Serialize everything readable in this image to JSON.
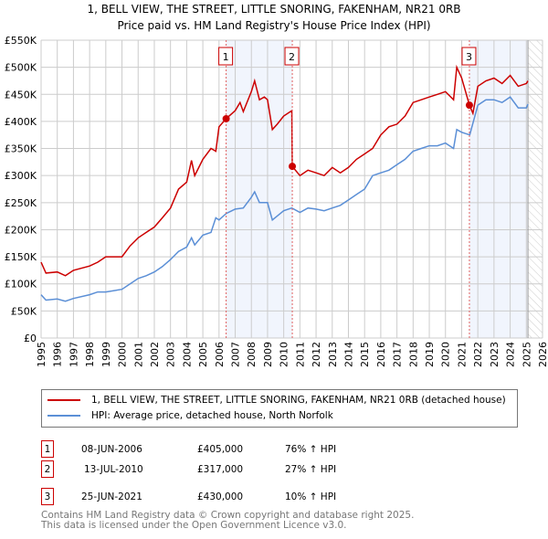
{
  "chart_data": {
    "type": "line",
    "title": "1, BELL VIEW, THE STREET, LITTLE SNORING, FAKENHAM, NR21 0RB",
    "subtitle": "Price paid vs. HM Land Registry's House Price Index (HPI)",
    "xlim": [
      1995,
      2026
    ],
    "ylim": [
      0,
      550000
    ],
    "yticks": [
      {
        "v": 0,
        "label": "£0"
      },
      {
        "v": 50000,
        "label": "£50K"
      },
      {
        "v": 100000,
        "label": "£100K"
      },
      {
        "v": 150000,
        "label": "£150K"
      },
      {
        "v": 200000,
        "label": "£200K"
      },
      {
        "v": 250000,
        "label": "£250K"
      },
      {
        "v": 300000,
        "label": "£300K"
      },
      {
        "v": 350000,
        "label": "£350K"
      },
      {
        "v": 400000,
        "label": "£400K"
      },
      {
        "v": 450000,
        "label": "£450K"
      },
      {
        "v": 500000,
        "label": "£500K"
      },
      {
        "v": 550000,
        "label": "£550K"
      }
    ],
    "xticks": [
      "1995",
      "1996",
      "1997",
      "1998",
      "1999",
      "2000",
      "2001",
      "2002",
      "2003",
      "2004",
      "2005",
      "2006",
      "2007",
      "2008",
      "2009",
      "2010",
      "2011",
      "2012",
      "2013",
      "2014",
      "2015",
      "2016",
      "2017",
      "2018",
      "2019",
      "2020",
      "2021",
      "2022",
      "2023",
      "2024",
      "2025",
      "2026"
    ],
    "grid": true,
    "shaded_periods": [
      [
        2006.44,
        2010.53
      ],
      [
        2021.48,
        2025.1
      ]
    ],
    "future_hatch_from": 2025.1,
    "series": [
      {
        "name": "1, BELL VIEW, THE STREET, LITTLE SNORING, FAKENHAM, NR21 0RB (detached house)",
        "color": "#cc0000",
        "x": [
          1995,
          1995.3,
          1996,
          1996.5,
          1997,
          1998,
          1998.5,
          1999,
          2000,
          2000.5,
          2001,
          2001.5,
          2002,
          2002.5,
          2003,
          2003.5,
          2004,
          2004.3,
          2004.5,
          2005,
          2005.5,
          2005.8,
          2006,
          2006.44,
          2007,
          2007.3,
          2007.5,
          2008,
          2008.2,
          2008.5,
          2008.8,
          2009,
          2009.3,
          2009.6,
          2010,
          2010.5,
          2010.53,
          2011,
          2011.5,
          2012,
          2012.5,
          2013,
          2013.5,
          2014,
          2014.5,
          2015,
          2015.5,
          2016,
          2016.5,
          2017,
          2017.5,
          2018,
          2018.5,
          2019,
          2019.5,
          2020,
          2020.5,
          2020.7,
          2021,
          2021.48,
          2021.7,
          2022,
          2022.5,
          2023,
          2023.5,
          2024,
          2024.5,
          2025,
          2025.1
        ],
        "y": [
          140,
          120,
          122,
          115,
          125,
          133,
          140,
          150,
          150,
          170,
          185,
          195,
          205,
          222,
          240,
          275,
          288,
          328,
          300,
          330,
          350,
          345,
          390,
          405,
          420,
          435,
          418,
          455,
          475,
          440,
          445,
          440,
          385,
          395,
          410,
          420,
          317,
          300,
          310,
          305,
          300,
          315,
          305,
          315,
          330,
          340,
          350,
          375,
          390,
          395,
          410,
          435,
          440,
          445,
          450,
          455,
          440,
          500,
          480,
          430,
          415,
          465,
          475,
          480,
          470,
          485,
          465,
          470,
          475
        ]
      },
      {
        "name": "HPI: Average price, detached house, North Norfolk",
        "color": "#5b8fd6",
        "x": [
          1995,
          1995.3,
          1996,
          1996.5,
          1997,
          1998,
          1998.5,
          1999,
          2000,
          2000.5,
          2001,
          2001.5,
          2002,
          2002.5,
          2003,
          2003.5,
          2004,
          2004.3,
          2004.5,
          2005,
          2005.5,
          2005.8,
          2006,
          2006.44,
          2007,
          2007.5,
          2008,
          2008.2,
          2008.5,
          2009,
          2009.3,
          2010,
          2010.5,
          2011,
          2011.5,
          2012,
          2012.5,
          2013,
          2013.5,
          2014,
          2014.5,
          2015,
          2015.5,
          2016,
          2016.5,
          2017,
          2017.5,
          2018,
          2018.5,
          2019,
          2019.5,
          2020,
          2020.5,
          2020.7,
          2021,
          2021.5,
          2022,
          2022.5,
          2023,
          2023.5,
          2024,
          2024.5,
          2025,
          2025.1
        ],
        "y": [
          80,
          70,
          72,
          68,
          73,
          80,
          85,
          85,
          90,
          100,
          110,
          115,
          122,
          132,
          145,
          160,
          168,
          185,
          172,
          190,
          195,
          222,
          218,
          230,
          238,
          240,
          260,
          270,
          250,
          250,
          218,
          235,
          240,
          232,
          240,
          238,
          235,
          240,
          245,
          255,
          265,
          275,
          300,
          305,
          310,
          320,
          330,
          345,
          350,
          355,
          355,
          360,
          350,
          385,
          380,
          375,
          430,
          440,
          440,
          435,
          445,
          425,
          425,
          432
        ]
      }
    ],
    "sales": [
      {
        "id": "1",
        "x": 2006.44,
        "price": 405000,
        "date": "08-JUN-2006",
        "price_label": "£405,000",
        "hpi": "76% ↑ HPI"
      },
      {
        "id": "2",
        "x": 2010.53,
        "price": 317000,
        "date": "13-JUL-2010",
        "price_label": "£317,000",
        "hpi": "27% ↑ HPI"
      },
      {
        "id": "3",
        "x": 2021.48,
        "price": 430000,
        "date": "25-JUN-2021",
        "price_label": "£430,000",
        "hpi": "10% ↑ HPI"
      }
    ]
  },
  "footer": {
    "line1": "Contains HM Land Registry data © Crown copyright and database right 2025.",
    "line2": "This data is licensed under the Open Government Licence v3.0."
  }
}
